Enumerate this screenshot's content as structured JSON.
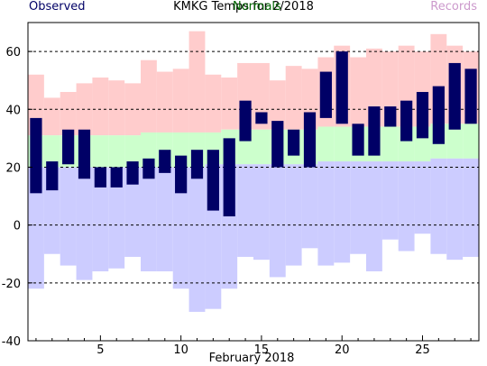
{
  "chart_data": {
    "type": "bar",
    "title": "KMKG Temps for 2/2018",
    "legend": [
      {
        "name": "Observed",
        "color": "#000066"
      },
      {
        "name": "Normals",
        "color": "#006600"
      },
      {
        "name": "Records",
        "color": "#cc99cc"
      }
    ],
    "xlabel": "February 2018",
    "ylabel": "",
    "xlim": [
      0.5,
      28.5
    ],
    "ylim": [
      -40,
      70
    ],
    "x_ticks": [
      5,
      10,
      15,
      20,
      25
    ],
    "y_ticks": [
      -40,
      -20,
      0,
      20,
      40,
      60
    ],
    "y_gridlines": [
      -20,
      0,
      20,
      40,
      60
    ],
    "grid": true,
    "days": [
      1,
      2,
      3,
      4,
      5,
      6,
      7,
      8,
      9,
      10,
      11,
      12,
      13,
      14,
      15,
      16,
      17,
      18,
      19,
      20,
      21,
      22,
      23,
      24,
      25,
      26,
      27,
      28
    ],
    "record_high": [
      52,
      44,
      46,
      49,
      51,
      50,
      49,
      57,
      53,
      54,
      67,
      52,
      51,
      56,
      56,
      50,
      55,
      54,
      58,
      62,
      58,
      61,
      60,
      62,
      60,
      66,
      62,
      60
    ],
    "record_low": [
      -22,
      -10,
      -14,
      -19,
      -16,
      -15,
      -11,
      -16,
      -16,
      -22,
      -30,
      -29,
      -22,
      -11,
      -12,
      -18,
      -14,
      -8,
      -14,
      -13,
      -10,
      -16,
      -5,
      -9,
      -3,
      -10,
      -12,
      -11
    ],
    "normal_high": [
      31,
      31,
      31,
      31,
      31,
      31,
      31,
      32,
      32,
      32,
      32,
      32,
      33,
      33,
      33,
      33,
      33,
      33,
      34,
      34,
      34,
      34,
      34,
      34,
      34,
      35,
      35,
      35
    ],
    "normal_low": [
      20,
      20,
      20,
      20,
      20,
      20,
      20,
      20,
      20,
      20,
      20,
      21,
      21,
      21,
      21,
      21,
      21,
      21,
      22,
      22,
      22,
      22,
      22,
      22,
      22,
      23,
      23,
      23
    ],
    "observed_high": [
      37,
      22,
      33,
      33,
      20,
      20,
      22,
      23,
      26,
      24,
      26,
      26,
      30,
      43,
      39,
      36,
      33,
      39,
      53,
      60,
      35,
      41,
      41,
      43,
      46,
      48,
      56,
      54
    ],
    "observed_low": [
      11,
      12,
      21,
      16,
      13,
      13,
      14,
      16,
      18,
      11,
      16,
      5,
      3,
      29,
      35,
      20,
      24,
      20,
      37,
      35,
      24,
      24,
      34,
      29,
      30,
      28,
      33,
      35
    ],
    "colors": {
      "record_band": "#ffcccc",
      "normal_band_high": "#ccffcc",
      "normal_band_low": "#ccccff",
      "observed_bar": "#000066",
      "grid": "#000000"
    }
  }
}
